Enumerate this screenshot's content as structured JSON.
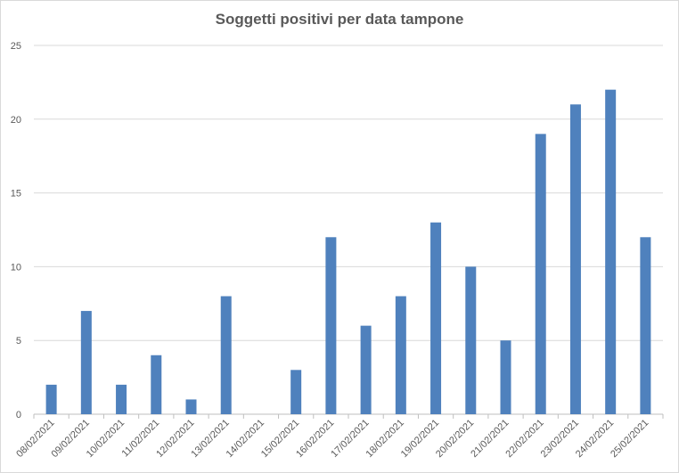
{
  "chart_data": {
    "type": "bar",
    "title": "Soggetti positivi per data tampone",
    "xlabel": "",
    "ylabel": "",
    "categories": [
      "08/02/2021",
      "09/02/2021",
      "10/02/2021",
      "11/02/2021",
      "12/02/2021",
      "13/02/2021",
      "14/02/2021",
      "15/02/2021",
      "16/02/2021",
      "17/02/2021",
      "18/02/2021",
      "19/02/2021",
      "20/02/2021",
      "21/02/2021",
      "22/02/2021",
      "23/02/2021",
      "24/02/2021",
      "25/02/2021"
    ],
    "values": [
      2,
      7,
      2,
      4,
      1,
      8,
      0,
      3,
      12,
      6,
      8,
      13,
      10,
      5,
      19,
      21,
      22,
      12
    ],
    "ylim": [
      0,
      25
    ],
    "yticks": [
      "0",
      "5",
      "10",
      "15",
      "20",
      "25"
    ],
    "grid": true,
    "bar_color": "#4f81bd",
    "grid_color": "#d9d9d9"
  }
}
